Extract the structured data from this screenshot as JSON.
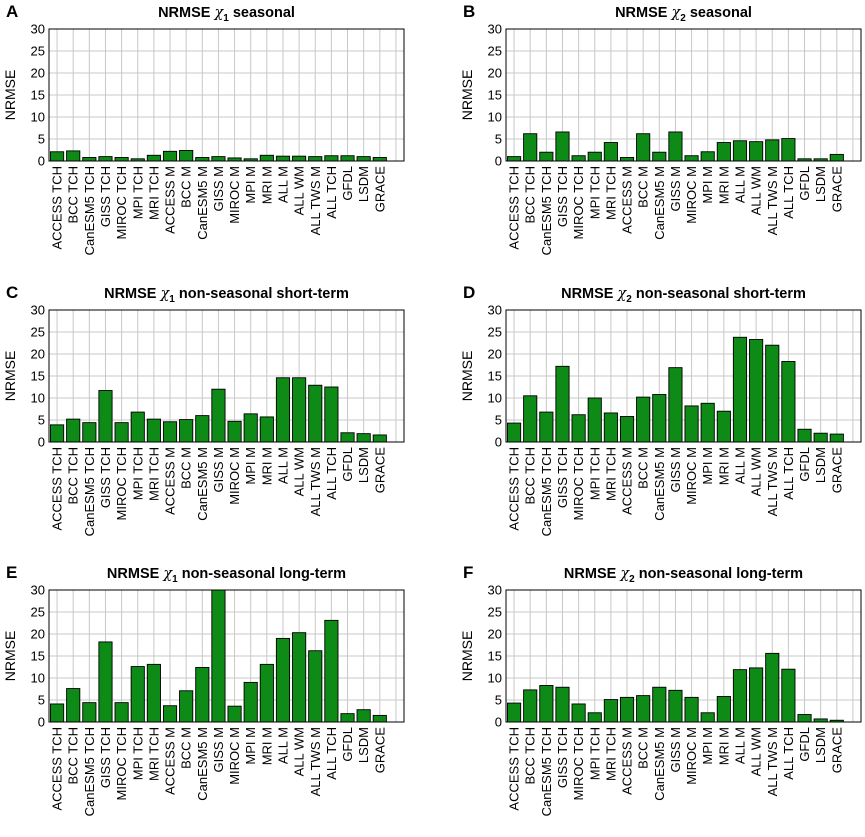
{
  "figure": {
    "colors": {
      "bar": "#0e8a16",
      "bar_edge": "#000000",
      "grid": "#c8c8c8"
    }
  },
  "chart_data": [
    {
      "panel": "A",
      "type": "bar",
      "title_prefix": "NRMSE",
      "symbol": "χ",
      "subscript": "1",
      "title_suffix": "seasonal",
      "ylabel": "NRMSE",
      "xlabel": "",
      "ylim": [
        0,
        30
      ],
      "yticks": [
        0,
        5,
        10,
        15,
        20,
        25,
        30
      ],
      "grid": true,
      "categories": [
        "ACCESS TCH",
        "BCC TCH",
        "CanESM5 TCH",
        "GISS TCH",
        "MIROC TCH",
        "MPI TCH",
        "MRI TCH",
        "ACCESS M",
        "BCC M",
        "CanESM5 M",
        "GISS M",
        "MIROC M",
        "MPI M",
        "MRI M",
        "ALL M",
        "ALL WM",
        "ALL TWS M",
        "ALL TCH",
        "GFDL",
        "LSDM",
        "GRACE"
      ],
      "values": [
        2.1,
        2.3,
        0.8,
        1.0,
        0.8,
        0.5,
        1.3,
        2.2,
        2.4,
        0.8,
        1.0,
        0.7,
        0.5,
        1.3,
        1.1,
        1.1,
        1.0,
        1.2,
        1.2,
        1.0,
        0.8
      ]
    },
    {
      "panel": "B",
      "type": "bar",
      "title_prefix": "NRMSE",
      "symbol": "χ",
      "subscript": "2",
      "title_suffix": "seasonal",
      "ylabel": "NRMSE",
      "xlabel": "",
      "ylim": [
        0,
        30
      ],
      "yticks": [
        0,
        5,
        10,
        15,
        20,
        25,
        30
      ],
      "grid": true,
      "categories": [
        "ACCESS TCH",
        "BCC TCH",
        "CanESM5 TCH",
        "GISS TCH",
        "MIROC TCH",
        "MPI TCH",
        "MRI TCH",
        "ACCESS M",
        "BCC M",
        "CanESM5 M",
        "GISS M",
        "MIROC M",
        "MPI M",
        "MRI M",
        "ALL M",
        "ALL WM",
        "ALL TWS M",
        "ALL TCH",
        "GFDL",
        "LSDM",
        "GRACE"
      ],
      "values": [
        1.0,
        6.2,
        2.0,
        6.6,
        1.2,
        2.0,
        4.2,
        0.8,
        6.2,
        2.0,
        6.6,
        1.2,
        2.1,
        4.2,
        4.6,
        4.4,
        4.8,
        5.1,
        0.5,
        0.5,
        1.5
      ]
    },
    {
      "panel": "C",
      "type": "bar",
      "title_prefix": "NRMSE",
      "symbol": "χ",
      "subscript": "1",
      "title_suffix": "non-seasonal short-term",
      "ylabel": "NRMSE",
      "xlabel": "",
      "ylim": [
        0,
        30
      ],
      "yticks": [
        0,
        5,
        10,
        15,
        20,
        25,
        30
      ],
      "grid": true,
      "categories": [
        "ACCESS TCH",
        "BCC TCH",
        "CanESM5 TCH",
        "GISS TCH",
        "MIROC TCH",
        "MPI TCH",
        "MRI TCH",
        "ACCESS M",
        "BCC M",
        "CanESM5 M",
        "GISS M",
        "MIROC M",
        "MPI M",
        "MRI M",
        "ALL M",
        "ALL WM",
        "ALL TWS M",
        "ALL TCH",
        "GFDL",
        "LSDM",
        "GRACE"
      ],
      "values": [
        3.9,
        5.2,
        4.4,
        11.7,
        4.4,
        6.8,
        5.2,
        4.6,
        5.1,
        6.0,
        12.0,
        4.7,
        6.4,
        5.7,
        14.6,
        14.6,
        12.9,
        12.5,
        2.1,
        1.9,
        1.6
      ]
    },
    {
      "panel": "D",
      "type": "bar",
      "title_prefix": "NRMSE",
      "symbol": "χ",
      "subscript": "2",
      "title_suffix": "non-seasonal short-term",
      "ylabel": "NRMSE",
      "xlabel": "",
      "ylim": [
        0,
        30
      ],
      "yticks": [
        0,
        5,
        10,
        15,
        20,
        25,
        30
      ],
      "grid": true,
      "categories": [
        "ACCESS TCH",
        "BCC TCH",
        "CanESM5 TCH",
        "GISS TCH",
        "MIROC TCH",
        "MPI TCH",
        "MRI TCH",
        "ACCESS M",
        "BCC M",
        "CanESM5 M",
        "GISS M",
        "MIROC M",
        "MPI M",
        "MRI M",
        "ALL M",
        "ALL WM",
        "ALL TWS M",
        "ALL TCH",
        "GFDL",
        "LSDM",
        "GRACE"
      ],
      "values": [
        4.3,
        10.5,
        6.8,
        17.2,
        6.2,
        10.0,
        6.6,
        5.8,
        10.2,
        10.8,
        16.9,
        8.2,
        8.8,
        7.0,
        23.8,
        23.3,
        22.0,
        18.3,
        2.9,
        2.0,
        1.8
      ]
    },
    {
      "panel": "E",
      "type": "bar",
      "title_prefix": "NRMSE",
      "symbol": "χ",
      "subscript": "1",
      "title_suffix": "non-seasonal long-term",
      "ylabel": "NRMSE",
      "xlabel": "",
      "ylim": [
        0,
        30
      ],
      "yticks": [
        0,
        5,
        10,
        15,
        20,
        25,
        30
      ],
      "grid": true,
      "categories": [
        "ACCESS TCH",
        "BCC TCH",
        "CanESM5 TCH",
        "GISS TCH",
        "MIROC TCH",
        "MPI TCH",
        "MRI TCH",
        "ACCESS M",
        "BCC M",
        "CanESM5 M",
        "GISS M",
        "MIROC M",
        "MPI M",
        "MRI M",
        "ALL M",
        "ALL WM",
        "ALL TWS M",
        "ALL TCH",
        "GFDL",
        "LSDM",
        "GRACE"
      ],
      "values": [
        4.1,
        7.6,
        4.4,
        18.2,
        4.4,
        12.6,
        13.1,
        3.7,
        7.1,
        12.4,
        30.0,
        3.6,
        9.0,
        13.1,
        19.0,
        20.3,
        16.2,
        23.1,
        1.9,
        2.8,
        1.5
      ]
    },
    {
      "panel": "F",
      "type": "bar",
      "title_prefix": "NRMSE",
      "symbol": "χ",
      "subscript": "2",
      "title_suffix": "non-seasonal long-term",
      "ylabel": "NRMSE",
      "xlabel": "",
      "ylim": [
        0,
        30
      ],
      "yticks": [
        0,
        5,
        10,
        15,
        20,
        25,
        30
      ],
      "grid": true,
      "categories": [
        "ACCESS TCH",
        "BCC TCH",
        "CanESM5 TCH",
        "GISS TCH",
        "MIROC TCH",
        "MPI TCH",
        "MRI TCH",
        "ACCESS M",
        "BCC M",
        "CanESM5 M",
        "GISS M",
        "MIROC M",
        "MPI M",
        "MRI M",
        "ALL M",
        "ALL WM",
        "ALL TWS M",
        "ALL TCH",
        "GFDL",
        "LSDM",
        "GRACE"
      ],
      "values": [
        4.3,
        7.3,
        8.3,
        7.9,
        4.1,
        2.1,
        5.1,
        5.6,
        6.0,
        7.9,
        7.2,
        5.6,
        2.1,
        5.8,
        11.9,
        12.3,
        15.6,
        12.0,
        1.7,
        0.7,
        0.4
      ]
    }
  ]
}
